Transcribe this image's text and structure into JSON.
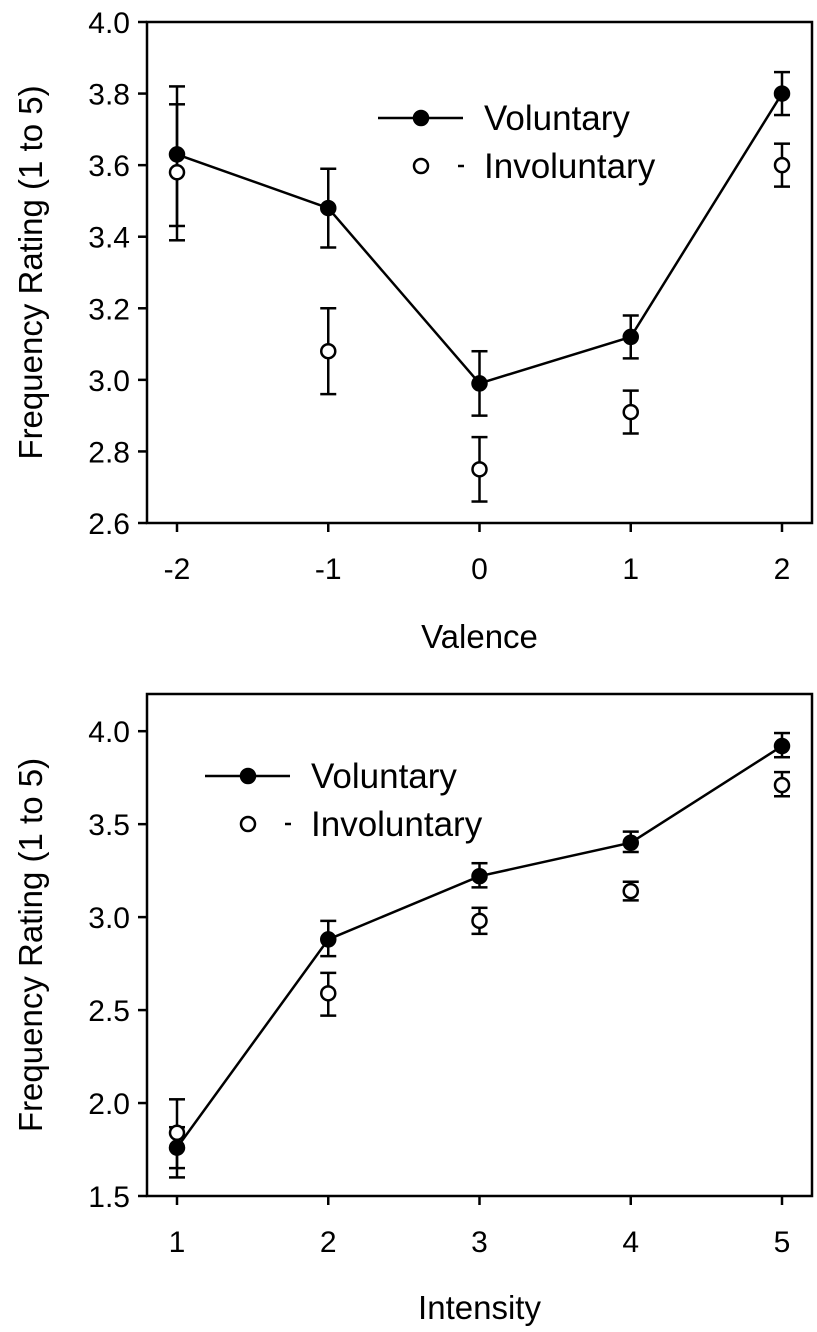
{
  "colors": {
    "line": "#000000",
    "filled_marker": "#000000",
    "open_marker_fill": "#ffffff",
    "background": "#ffffff"
  },
  "chart_data": [
    {
      "type": "line",
      "xlabel": "Valence",
      "ylabel": "Frequency Rating (1 to 5)",
      "x": [
        -2,
        -1,
        0,
        1,
        2
      ],
      "xticks": [
        "-2",
        "-1",
        "0",
        "1",
        "2"
      ],
      "xlim": [
        -2,
        2
      ],
      "ylim": [
        2.6,
        4.0
      ],
      "yticks": [
        "2.6",
        "2.8",
        "3.0",
        "3.2",
        "3.4",
        "3.6",
        "3.8",
        "4.0"
      ],
      "grid": false,
      "legend_position": "top-right",
      "series": [
        {
          "name": "Voluntary",
          "marker": "filled-circle",
          "line": "solid",
          "values": [
            3.63,
            3.48,
            2.99,
            3.12,
            3.8
          ],
          "err_low": [
            3.43,
            3.37,
            2.9,
            3.06,
            3.74
          ],
          "err_high": [
            3.82,
            3.59,
            3.08,
            3.18,
            3.86
          ]
        },
        {
          "name": "Involuntary",
          "marker": "open-circle",
          "line": "dashed",
          "values": [
            3.58,
            3.08,
            2.75,
            2.91,
            3.6
          ],
          "err_low": [
            3.39,
            2.96,
            2.66,
            2.85,
            3.54
          ],
          "err_high": [
            3.77,
            3.2,
            2.84,
            2.97,
            3.66
          ]
        }
      ]
    },
    {
      "type": "line",
      "xlabel": "Intensity",
      "ylabel": "Frequency Rating (1 to 5)",
      "x": [
        1,
        2,
        3,
        4,
        5
      ],
      "xticks": [
        "1",
        "2",
        "3",
        "4",
        "5"
      ],
      "xlim": [
        1,
        5
      ],
      "ylim": [
        1.5,
        4.2
      ],
      "yticks": [
        "1.5",
        "2.0",
        "2.5",
        "3.0",
        "3.5",
        "4.0"
      ],
      "grid": false,
      "legend_position": "top-left",
      "series": [
        {
          "name": "Voluntary",
          "marker": "filled-circle",
          "line": "solid",
          "values": [
            1.76,
            2.88,
            3.22,
            3.4,
            3.92
          ],
          "err_low": [
            1.65,
            2.79,
            3.16,
            3.35,
            3.86
          ],
          "err_high": [
            1.87,
            2.98,
            3.29,
            3.46,
            3.99
          ]
        },
        {
          "name": "Involuntary",
          "marker": "open-circle",
          "line": "dashed",
          "values": [
            1.84,
            2.59,
            2.98,
            3.14,
            3.71
          ],
          "err_low": [
            1.6,
            2.47,
            2.91,
            3.09,
            3.65
          ],
          "err_high": [
            2.02,
            2.7,
            3.05,
            3.19,
            3.78
          ]
        }
      ]
    }
  ]
}
